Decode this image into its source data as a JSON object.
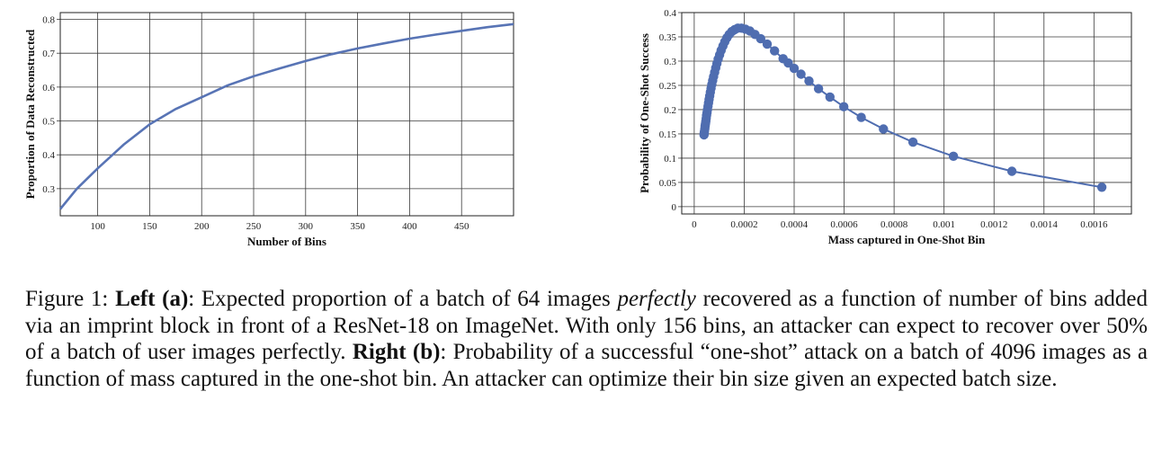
{
  "caption": {
    "figure_label": "Figure 1:",
    "left_label": "Left (a)",
    "seg1": ": Expected proportion of a batch of 64 images ",
    "emph": "perfectly",
    "seg2": " recovered as a function of number of bins added via an imprint block in front of a ResNet-18 on ImageNet. With only 156 bins, an attacker can expect to recover over 50% of a batch of user images perfectly. ",
    "right_label": "Right (b)",
    "seg3": ": Probability of a successful “one-shot” attack on a batch of 4096 images as a function of mass captured in the one-shot bin. An attacker can optimize their bin size given an expected batch size."
  },
  "chart_data": [
    {
      "type": "line",
      "xlabel": "Number of Bins",
      "ylabel": "Proportion of Data Reconstructed",
      "xlim": [
        64,
        500
      ],
      "ylim": [
        0.22,
        0.82
      ],
      "xticks": [
        100,
        150,
        200,
        250,
        300,
        350,
        400,
        450
      ],
      "xtick_labels": [
        "100",
        "150",
        "200",
        "250",
        "300",
        "350",
        "400",
        "450"
      ],
      "yticks": [
        0.3,
        0.4,
        0.5,
        0.6,
        0.7,
        0.8
      ],
      "ytick_labels": [
        "0.3",
        "0.4",
        "0.5",
        "0.6",
        "0.7",
        "0.8"
      ],
      "grid": true,
      "series": [
        {
          "x": [
            64,
            80,
            100,
            125,
            150,
            175,
            200,
            225,
            250,
            275,
            300,
            325,
            350,
            375,
            400,
            425,
            450,
            475,
            500
          ],
          "y": [
            0.24,
            0.3,
            0.36,
            0.43,
            0.49,
            0.535,
            0.57,
            0.605,
            0.632,
            0.655,
            0.677,
            0.697,
            0.714,
            0.729,
            0.743,
            0.755,
            0.766,
            0.777,
            0.786
          ]
        }
      ],
      "color": "#5874b5"
    },
    {
      "type": "scatter",
      "xlabel": "Mass captured in One-Shot Bin",
      "ylabel": "Probability of One-Shot Success",
      "xlim": [
        -5e-05,
        0.00175
      ],
      "ylim": [
        -0.015,
        0.4
      ],
      "xticks": [
        0,
        0.0002,
        0.0004,
        0.0006,
        0.0008,
        0.001,
        0.0012,
        0.0014,
        0.0016
      ],
      "xtick_labels": [
        "0",
        "0.0002",
        "0.0004",
        "0.0006",
        "0.0008",
        "0.001",
        "0.0012",
        "0.0014",
        "0.0016"
      ],
      "yticks": [
        0,
        0.05,
        0.1,
        0.15,
        0.2,
        0.25,
        0.3,
        0.35,
        0.4
      ],
      "ytick_labels": [
        "0",
        "0.05",
        "0.1",
        "0.15",
        "0.2",
        "0.25",
        "0.3",
        "0.35",
        "0.4"
      ],
      "grid": true,
      "points": {
        "x": [
          3.91e-05,
          4.01e-05,
          4.12e-05,
          4.24e-05,
          4.37e-05,
          4.5e-05,
          4.64e-05,
          4.79e-05,
          4.95e-05,
          5.13e-05,
          5.31e-05,
          5.51e-05,
          5.72e-05,
          5.95e-05,
          6.2e-05,
          6.46e-05,
          6.75e-05,
          7.06e-05,
          7.4e-05,
          7.76e-05,
          8.16e-05,
          8.59e-05,
          9.06e-05,
          9.58e-05,
          0.0001015,
          0.0001078,
          0.0001147,
          0.0001223,
          0.0001307,
          0.0001401,
          0.0001504,
          0.0001619,
          0.0001747,
          0.0001889,
          0.0002049,
          0.0002228,
          0.000243,
          0.0002659,
          0.0002919,
          0.0003216,
          0.0003557,
          0.0003763,
          0.0004,
          0.0004274,
          0.0004595,
          0.0004975,
          0.0005431,
          0.0005988,
          0.0006684,
          0.0007575,
          0.0008754,
          0.0010374,
          0.0012716,
          0.0016317
        ],
        "y": [
          0.148,
          0.152,
          0.156,
          0.161,
          0.166,
          0.171,
          0.176,
          0.182,
          0.188,
          0.194,
          0.2,
          0.207,
          0.214,
          0.221,
          0.228,
          0.236,
          0.244,
          0.252,
          0.26,
          0.268,
          0.277,
          0.286,
          0.295,
          0.304,
          0.313,
          0.322,
          0.331,
          0.34,
          0.348,
          0.355,
          0.361,
          0.365,
          0.368,
          0.368,
          0.366,
          0.362,
          0.355,
          0.346,
          0.335,
          0.321,
          0.305,
          0.296,
          0.285,
          0.273,
          0.259,
          0.243,
          0.226,
          0.206,
          0.184,
          0.16,
          0.133,
          0.104,
          0.073,
          0.04
        ]
      },
      "color": "#4f6db0"
    }
  ]
}
